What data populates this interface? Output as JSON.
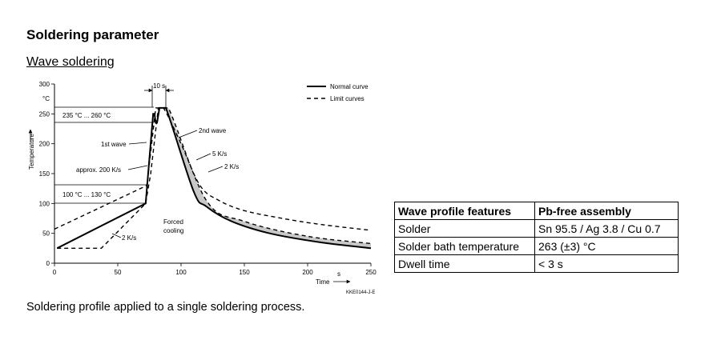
{
  "doc": {
    "title": "Soldering parameter",
    "subtitle": "Wave soldering",
    "caption": "Soldering profile applied to a single soldering process."
  },
  "chart_data": {
    "type": "line",
    "ylabel": "Temperature",
    "yunit": "°C",
    "xlabel": "Time",
    "xunit": "s",
    "xlim": [
      0,
      250
    ],
    "ylim": [
      0,
      300
    ],
    "xticks": [
      "0",
      "50",
      "100",
      "150",
      "200",
      "250"
    ],
    "yticks": [
      "0",
      "50",
      "100",
      "150",
      "200",
      "250",
      "300"
    ],
    "legend": {
      "position": "top-right",
      "normal": "Normal curve",
      "limit": "Limit curves"
    },
    "annotations": {
      "peak_time": "10 s",
      "peak_range": "235 °C ... 260 °C",
      "first_wave": "1st wave",
      "second_wave": "2nd wave",
      "ramp": "approx. 200 K/s",
      "preheat_range": "100 °C ... 130 °C",
      "rate_5": "5 K/s",
      "rate_2a": "2 K/s",
      "rate_2b": "2 K/s",
      "forced_cooling_1": "Forced",
      "forced_cooling_2": "cooling",
      "code": "KKE0144-J-E"
    },
    "series": [
      {
        "name": "Normal curve",
        "style": "solid",
        "x": [
          2,
          72,
          78,
          79,
          80,
          81,
          83,
          88,
          110,
          120,
          140,
          170,
          210,
          250
        ],
        "y": [
          25,
          100,
          250,
          250,
          235,
          235,
          260,
          260,
          120,
          95,
          70,
          50,
          35,
          25
        ]
      },
      {
        "name": "Limit curves (upper)",
        "style": "dashed",
        "x": [
          0,
          73,
          80,
          86,
          100,
          115,
          130,
          150,
          180,
          210,
          250
        ],
        "y": [
          57,
          130,
          260,
          260,
          200,
          130,
          105,
          88,
          75,
          65,
          55
        ]
      },
      {
        "name": "Limit curves (lower)",
        "style": "dashed",
        "x": [
          2,
          37,
          72,
          76,
          82,
          90,
          120,
          150,
          200,
          250
        ],
        "y": [
          25,
          25,
          100,
          150,
          260,
          260,
          105,
          70,
          45,
          33
        ]
      }
    ]
  },
  "table": {
    "headers": [
      "Wave profile features",
      "Pb-free assembly"
    ],
    "rows": [
      [
        "Solder",
        "Sn 95.5 / Ag 3.8 / Cu 0.7"
      ],
      [
        "Solder bath temperature",
        "263 (±3) °C"
      ],
      [
        "Dwell time",
        "< 3 s"
      ]
    ]
  }
}
